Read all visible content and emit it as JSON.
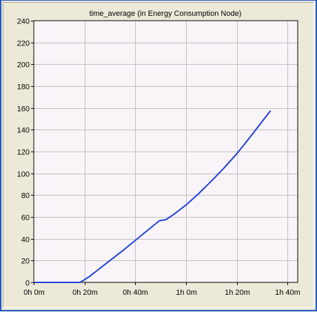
{
  "chart_data": {
    "type": "line",
    "title": "time_average (in Energy Consumption Node)",
    "xlabel": "",
    "ylabel": "",
    "x_unit": "minutes",
    "xlim": [
      0,
      104
    ],
    "ylim": [
      0,
      240
    ],
    "x_ticks": [
      {
        "value": 0,
        "label": "0h 0m"
      },
      {
        "value": 20,
        "label": "0h 20m"
      },
      {
        "value": 40,
        "label": "0h 40m"
      },
      {
        "value": 60,
        "label": "1h 0m"
      },
      {
        "value": 80,
        "label": "1h 20m"
      },
      {
        "value": 100,
        "label": "1h 40m"
      }
    ],
    "y_ticks": [
      0,
      20,
      40,
      60,
      80,
      100,
      120,
      140,
      160,
      180,
      200,
      220,
      240
    ],
    "grid": true,
    "colors": {
      "plot_background": "#f8f4f8",
      "grid": "#c0c0c0",
      "line": "#1f3fd8",
      "window_border": "#1f56c9"
    },
    "series": [
      {
        "x": [
          0,
          10,
          18,
          19,
          20,
          22,
          25,
          30,
          35,
          40,
          45,
          49.5,
          50.5,
          52,
          55,
          60,
          65,
          70,
          75,
          80,
          85,
          90,
          93.3
        ],
        "y": [
          0,
          0,
          0,
          1,
          2.5,
          5.5,
          11,
          20,
          29,
          38.5,
          48,
          56.5,
          57,
          57.5,
          62,
          71,
          81.5,
          93,
          105,
          118,
          132.5,
          147.5,
          157.5
        ]
      }
    ]
  }
}
